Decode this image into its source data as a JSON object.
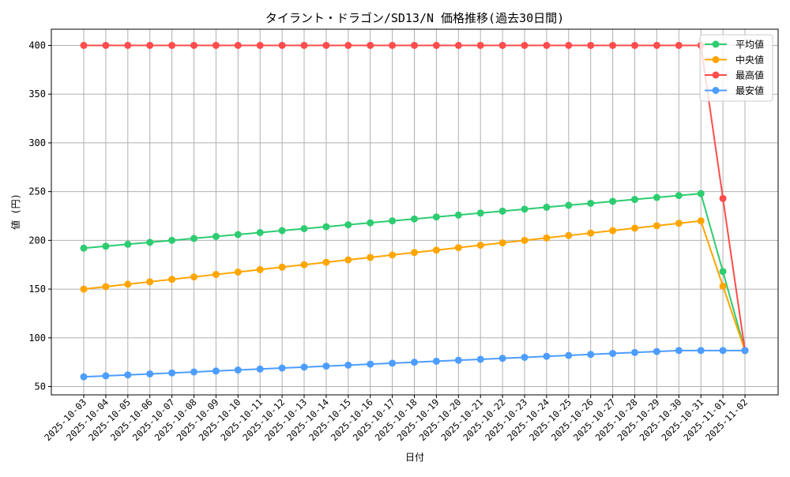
{
  "chart_data": {
    "type": "line",
    "title": "タイラント・ドラゴン/SD13/N 価格推移(過去30日間)",
    "xlabel": "日付",
    "ylabel": "値 (円)",
    "ylim": [
      41.5,
      416.6
    ],
    "yticks": [
      50,
      100,
      150,
      200,
      250,
      300,
      350,
      400
    ],
    "grid": true,
    "legend_position": "top-right",
    "categories": [
      "2025-10-03",
      "2025-10-04",
      "2025-10-05",
      "2025-10-06",
      "2025-10-07",
      "2025-10-08",
      "2025-10-09",
      "2025-10-10",
      "2025-10-11",
      "2025-10-12",
      "2025-10-13",
      "2025-10-14",
      "2025-10-15",
      "2025-10-16",
      "2025-10-17",
      "2025-10-18",
      "2025-10-19",
      "2025-10-20",
      "2025-10-21",
      "2025-10-22",
      "2025-10-23",
      "2025-10-24",
      "2025-10-25",
      "2025-10-26",
      "2025-10-27",
      "2025-10-28",
      "2025-10-29",
      "2025-10-30",
      "2025-10-31",
      "2025-11-01",
      "2025-11-02"
    ],
    "series": [
      {
        "name": "平均値",
        "color": "#2ecc71",
        "values": [
          192,
          194,
          196,
          198,
          200,
          202,
          204,
          206,
          208,
          210,
          212,
          214,
          216,
          218,
          220,
          222,
          224,
          226,
          228,
          230,
          232,
          234,
          236,
          238,
          240,
          242,
          244,
          246,
          248,
          168,
          87
        ]
      },
      {
        "name": "中央値",
        "color": "#ffa500",
        "values": [
          150,
          152.5,
          155,
          157.5,
          160,
          162.5,
          165,
          167.5,
          170,
          172.5,
          175,
          177.5,
          180,
          182.5,
          185,
          187.5,
          190,
          192.5,
          195,
          197.5,
          200,
          202.5,
          205,
          207.5,
          210,
          212.5,
          215,
          217.5,
          220,
          153,
          87
        ]
      },
      {
        "name": "最高値",
        "color": "#ff4c4c",
        "values": [
          400,
          400,
          400,
          400,
          400,
          400,
          400,
          400,
          400,
          400,
          400,
          400,
          400,
          400,
          400,
          400,
          400,
          400,
          400,
          400,
          400,
          400,
          400,
          400,
          400,
          400,
          400,
          400,
          400,
          243,
          87
        ]
      },
      {
        "name": "最安値",
        "color": "#4c9dff",
        "values": [
          60,
          61,
          62,
          63,
          64,
          65,
          66,
          67,
          68,
          69,
          70,
          71,
          72,
          73,
          74,
          75,
          76,
          77,
          78,
          79,
          80,
          81,
          82,
          83,
          84,
          85,
          86,
          87,
          87,
          87,
          87
        ]
      }
    ]
  }
}
